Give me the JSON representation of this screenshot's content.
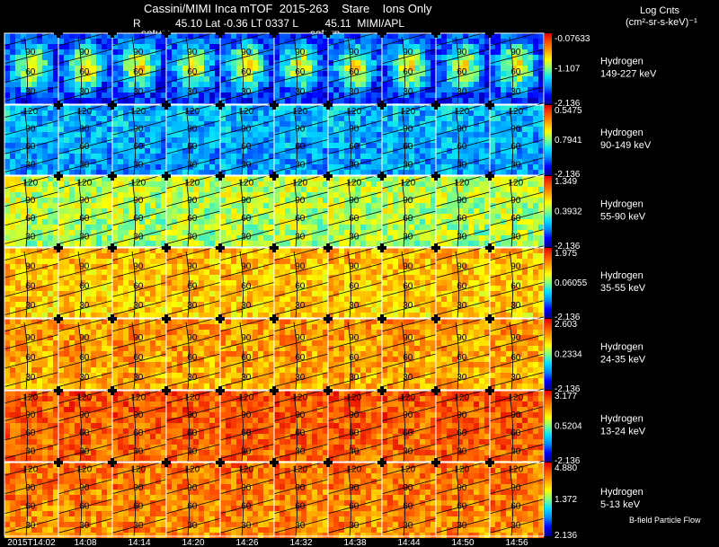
{
  "header": {
    "title": "Cassini/MIMI Inca mTOF  2015-263    Stare    Ions Only",
    "info_r_label": "R",
    "info_rest": "45.10 Lat -0.36 LT 0337 L         45.11  MIMI/APL",
    "saturn_label": "saturn",
    "units_title": "Log Cnts",
    "units_sub": "(cm²-sr-s-keV)⁻¹"
  },
  "footer": {
    "legend_text": "B-field Particle Flow",
    "time_labels": [
      "2015T14:02",
      "14:08",
      "14:14",
      "14:20",
      "14:26",
      "14:32",
      "14:38",
      "14:44",
      "14:50",
      "14:56"
    ]
  },
  "colors": {
    "scale": [
      "#00008b",
      "#0000ff",
      "#0088ff",
      "#00e0ff",
      "#80ff80",
      "#ffff00",
      "#ffa500",
      "#ff5000",
      "#e00000"
    ]
  },
  "chart_data": {
    "type": "heatmap",
    "title": "Cassini/MIMI Inca mTOF 2015-263 Stare Ions Only",
    "columns": 10,
    "grid_line_labels": [
      "120",
      "90",
      "60",
      "30"
    ],
    "rows": [
      {
        "species": "Hydrogen",
        "energy": "149-227 keV",
        "cmax": "-0.07633",
        "cmid": "-1.107",
        "cmin": "-2.136",
        "level": 0.22,
        "spot": 0.55,
        "grid_labels": [
          "90",
          "60",
          "30"
        ]
      },
      {
        "species": "Hydrogen",
        "energy": "90-149 keV",
        "cmax": "0.5475",
        "cmid": "0.7941",
        "cmin": "-2.136",
        "level": 0.3,
        "spot": 0.0,
        "grid_labels": [
          "120",
          "90",
          "60",
          "30"
        ]
      },
      {
        "species": "Hydrogen",
        "energy": "55-90 keV",
        "cmax": "1.349",
        "cmid": "0.3932",
        "cmin": "-2.136",
        "level": 0.55,
        "spot": 0.0,
        "grid_labels": [
          "120",
          "90",
          "60",
          "30"
        ]
      },
      {
        "species": "Hydrogen",
        "energy": "35-55 keV",
        "cmax": "1.975",
        "cmid": "0.06055",
        "cmin": "-2.136",
        "level": 0.7,
        "spot": 0.0,
        "grid_labels": [
          "90",
          "60",
          "30"
        ]
      },
      {
        "species": "Hydrogen",
        "energy": "24-35 keV",
        "cmax": "2.603",
        "cmid": "0.2334",
        "cmin": "-2.136",
        "level": 0.75,
        "spot": 0.0,
        "grid_labels": [
          "90",
          "60",
          "30"
        ]
      },
      {
        "species": "Hydrogen",
        "energy": "13-24 keV",
        "cmax": "3.177",
        "cmid": "0.5204",
        "cmin": "-2.136",
        "level": 0.85,
        "spot": 0.0,
        "grid_labels": [
          "120",
          "90",
          "60",
          "30"
        ]
      },
      {
        "species": "Hydrogen",
        "energy": "5-13 keV",
        "cmax": "4.880",
        "cmid": "1.372",
        "cmin": "2.136",
        "level": 0.8,
        "spot": 0.0,
        "grid_labels": [
          "120",
          "90",
          "60",
          "30"
        ]
      }
    ]
  }
}
